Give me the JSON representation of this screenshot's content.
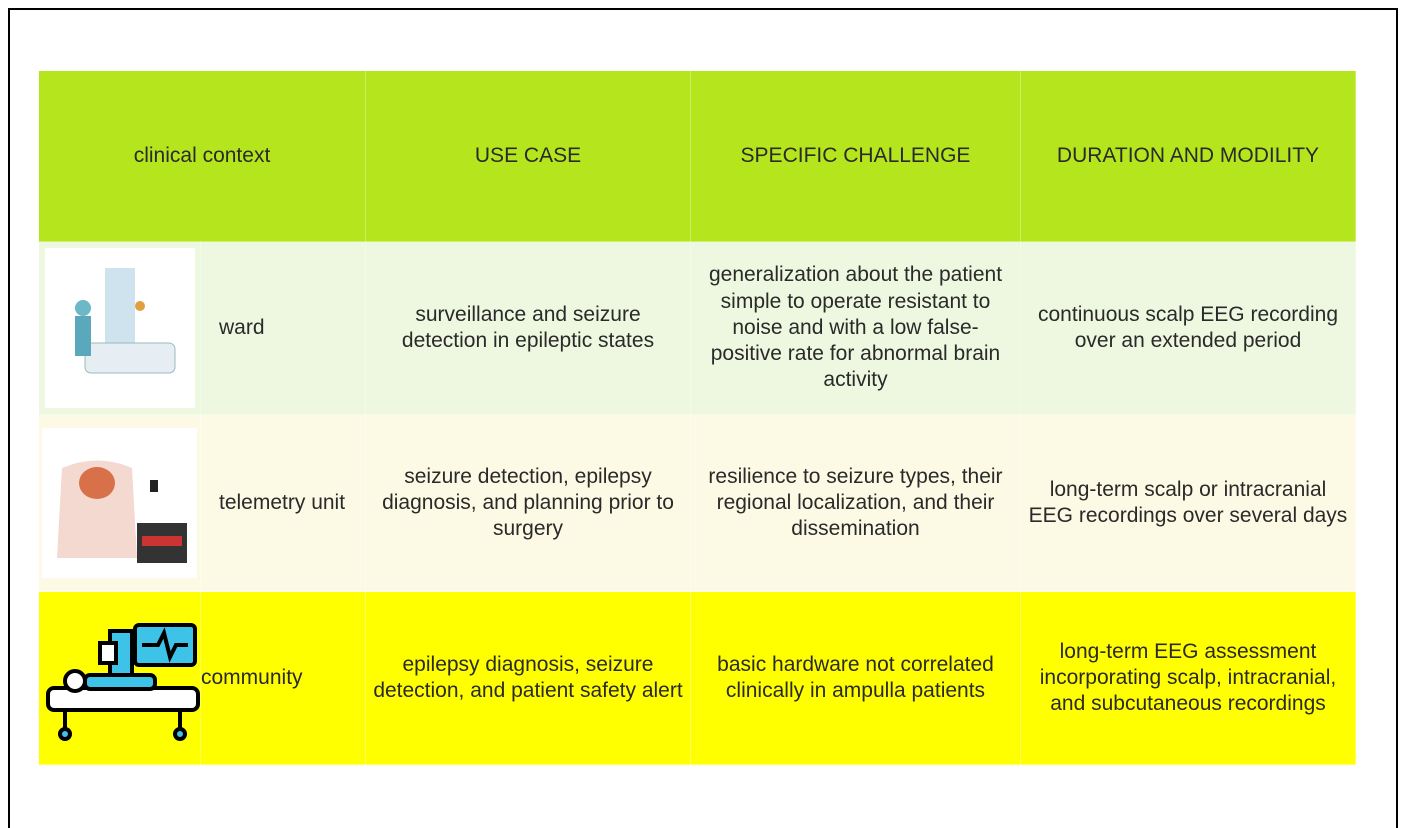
{
  "table": {
    "header": [
      "clinical context",
      "USE CASE",
      "SPECIFIC CHALLENGE",
      "DURATION AND MODILITY"
    ],
    "rows": [
      [
        "ward",
        "surveillance and seizure detection in epileptic states",
        "generalization about the patient simple to operate resistant to noise and with a low false-positive rate for abnormal brain activity",
        "continuous scalp EEG recording over an extended period"
      ],
      [
        "telemetry unit",
        "seizure detection, epilepsy diagnosis, and planning prior to surgery",
        "resilience to seizure types, their regional localization, and their dissemination",
        "long-term scalp or intracranial EEG recordings over several days"
      ],
      [
        "community",
        "epilepsy diagnosis, seizure detection, and patient safety alert",
        "basic hardware not correlated clinically in ampulla patients",
        "long-term EEG assessment incorporating scalp, intracranial, and subcutaneous recordings"
      ]
    ]
  }
}
